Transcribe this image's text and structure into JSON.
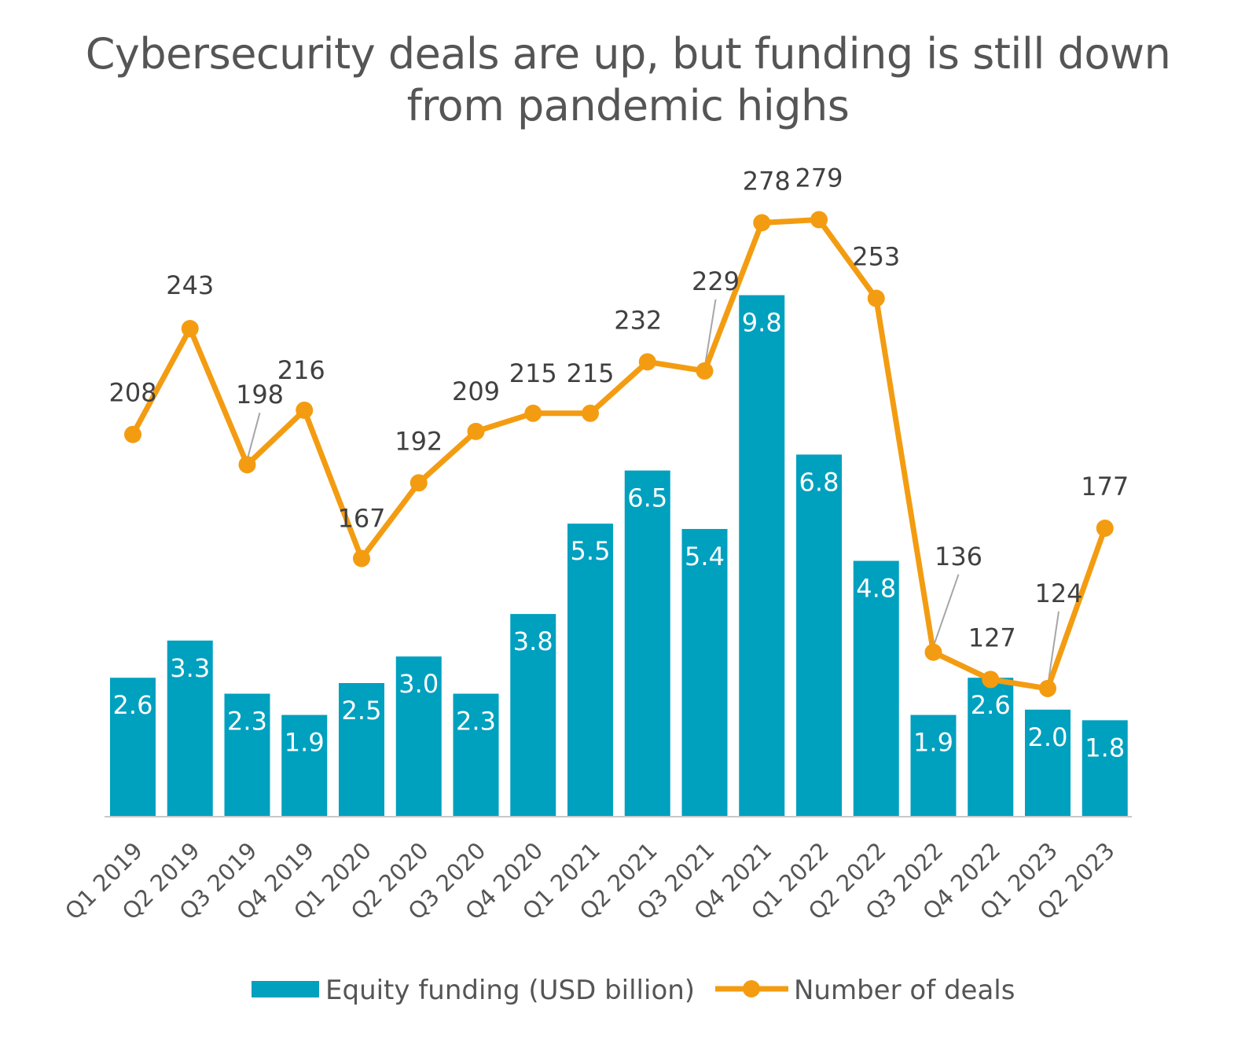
{
  "title_line1": "Cybersecurity deals are up, but funding is still down",
  "title_line2": "from pandemic highs",
  "colors": {
    "bar": "#00a0bf",
    "line": "#f39c12",
    "leader": "#a6a6a6",
    "axis": "#c8c8c8"
  },
  "chart_data": {
    "type": "bar",
    "title": "Cybersecurity deals are up, but funding is still down from pandemic highs",
    "categories": [
      "Q1 2019",
      "Q2 2019",
      "Q3 2019",
      "Q4 2019",
      "Q1 2020",
      "Q2 2020",
      "Q3 2020",
      "Q4 2020",
      "Q1 2021",
      "Q2 2021",
      "Q3 2021",
      "Q4 2021",
      "Q1 2022",
      "Q2 2022",
      "Q3 2022",
      "Q4 2022",
      "Q1 2023",
      "Q2 2023"
    ],
    "series": [
      {
        "name": "Equity funding (USD billion)",
        "type": "bar",
        "values": [
          2.6,
          3.3,
          2.3,
          1.9,
          2.5,
          3.0,
          2.3,
          3.8,
          5.5,
          6.5,
          5.4,
          9.8,
          6.8,
          4.8,
          1.9,
          2.6,
          2.0,
          1.8
        ],
        "labels": [
          "2.6",
          "3.3",
          "2.3",
          "1.9",
          "2.5",
          "3.0",
          "2.3",
          "3.8",
          "5.5",
          "6.5",
          "5.4",
          "9.8",
          "6.8",
          "4.8",
          "1.9",
          "2.6",
          "2.0",
          "1.8"
        ]
      },
      {
        "name": "Number of deals",
        "type": "line",
        "values": [
          208,
          243,
          198,
          216,
          167,
          192,
          209,
          215,
          215,
          232,
          229,
          278,
          279,
          253,
          136,
          127,
          124,
          177
        ],
        "labels": [
          "208",
          "243",
          "198",
          "216",
          "167",
          "192",
          "209",
          "215",
          "215",
          "232",
          "229",
          "278",
          "279",
          "253",
          "136",
          "127",
          "124",
          "177"
        ]
      }
    ],
    "legend": "bottom",
    "grid": false
  }
}
